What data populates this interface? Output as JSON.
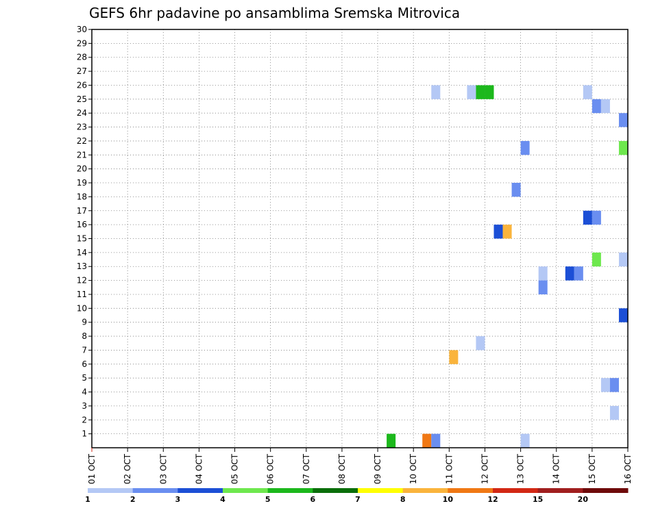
{
  "chart_data": {
    "type": "heatmap",
    "title": "GEFS 6hr padavine po ansamblima Sremska Mitrovica",
    "xlabel": "",
    "ylabel": "",
    "x_tick_labels": [
      "01 OCT",
      "02 OCT",
      "03 OCT",
      "04 OCT",
      "05 OCT",
      "06 OCT",
      "07 OCT",
      "08 OCT",
      "09 OCT",
      "10 OCT",
      "11 OCT",
      "12 OCT",
      "13 OCT",
      "14 OCT",
      "15 OCT",
      "16 OCT"
    ],
    "y_tick_labels": [
      "1",
      "2",
      "3",
      "4",
      "5",
      "6",
      "7",
      "8",
      "9",
      "10",
      "11",
      "12",
      "13",
      "14",
      "15",
      "16",
      "17",
      "18",
      "19",
      "20",
      "21",
      "22",
      "23",
      "24",
      "25",
      "26",
      "27",
      "28",
      "29",
      "30"
    ],
    "xlim": [
      1,
      16
    ],
    "ylim": [
      0,
      30
    ],
    "grid": true,
    "colorbar": {
      "labels": [
        "1",
        "2",
        "3",
        "4",
        "5",
        "6",
        "7",
        "8",
        "10",
        "12",
        "15",
        "20"
      ],
      "colors": [
        "#b4c8f5",
        "#6a8ef0",
        "#1c4fd6",
        "#6ee84e",
        "#1cb81c",
        "#0a6e0a",
        "#ffff00",
        "#fab43c",
        "#f07814",
        "#d22814",
        "#a01e1e",
        "#6e0a0a"
      ]
    },
    "cells": [
      {
        "day": 10.625,
        "member": 26,
        "value": 1
      },
      {
        "day": 11.625,
        "member": 26,
        "value": 1
      },
      {
        "day": 11.875,
        "member": 26,
        "value": 5
      },
      {
        "day": 12.125,
        "member": 26,
        "value": 5
      },
      {
        "day": 14.875,
        "member": 26,
        "value": 1
      },
      {
        "day": 15.125,
        "member": 25,
        "value": 2
      },
      {
        "day": 15.375,
        "member": 25,
        "value": 1
      },
      {
        "day": 15.875,
        "member": 24,
        "value": 2
      },
      {
        "day": 13.125,
        "member": 22,
        "value": 2
      },
      {
        "day": 15.875,
        "member": 22,
        "value": 4
      },
      {
        "day": 12.875,
        "member": 19,
        "value": 2
      },
      {
        "day": 14.875,
        "member": 17,
        "value": 3
      },
      {
        "day": 15.125,
        "member": 17,
        "value": 2
      },
      {
        "day": 12.375,
        "member": 16,
        "value": 3
      },
      {
        "day": 12.625,
        "member": 16,
        "value": 8
      },
      {
        "day": 15.125,
        "member": 14,
        "value": 4
      },
      {
        "day": 15.875,
        "member": 14,
        "value": 1
      },
      {
        "day": 13.625,
        "member": 13,
        "value": 1
      },
      {
        "day": 14.375,
        "member": 13,
        "value": 3
      },
      {
        "day": 14.625,
        "member": 13,
        "value": 2
      },
      {
        "day": 13.625,
        "member": 12,
        "value": 2
      },
      {
        "day": 15.875,
        "member": 10,
        "value": 3
      },
      {
        "day": 11.875,
        "member": 8,
        "value": 1
      },
      {
        "day": 11.125,
        "member": 7,
        "value": 8
      },
      {
        "day": 15.375,
        "member": 5,
        "value": 1
      },
      {
        "day": 15.625,
        "member": 5,
        "value": 2
      },
      {
        "day": 15.625,
        "member": 3,
        "value": 1
      },
      {
        "day": 9.375,
        "member": 1,
        "value": 5
      },
      {
        "day": 10.375,
        "member": 1,
        "value": 10
      },
      {
        "day": 10.625,
        "member": 1,
        "value": 2
      },
      {
        "day": 13.125,
        "member": 1,
        "value": 1
      }
    ]
  }
}
